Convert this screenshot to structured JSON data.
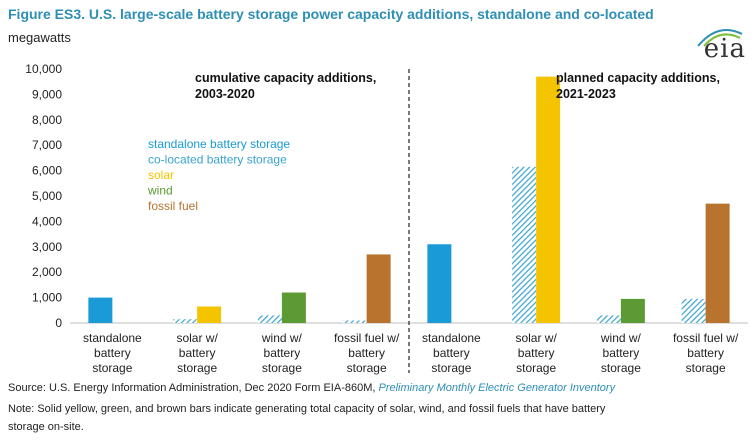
{
  "title": "Figure ES3. U.S. large-scale battery storage power capacity additions, standalone and co-located",
  "unit_label": "megawatts",
  "logo_text": "eia",
  "footer": {
    "source_prefix": "Source: U.S. Energy Information Administration, Dec 2020 Form EIA-860M, ",
    "source_link": "Preliminary Monthly Electric Generator Inventory",
    "note_line1": "Note: Solid yellow, green, and brown bars indicate generating total capacity of solar, wind, and fossil fuels that have battery",
    "note_line2": "storage on-site."
  },
  "colors": {
    "standalone": "#1a9ad6",
    "colocated": "#3aa3cf",
    "solar": "#f5c400",
    "wind": "#5c9a33",
    "fossil": "#b8732f",
    "title": "#2e8fb4"
  },
  "chart_data": {
    "type": "bar",
    "ylim": [
      0,
      10000
    ],
    "yticks": [
      0,
      1000,
      2000,
      3000,
      4000,
      5000,
      6000,
      7000,
      8000,
      9000,
      10000
    ],
    "ytick_labels": [
      "0",
      "1,000",
      "2,000",
      "3,000",
      "4,000",
      "5,000",
      "6,000",
      "7,000",
      "8,000",
      "9,000",
      "10,000"
    ],
    "grid": false,
    "categories": [
      [
        "standalone",
        "battery",
        "storage"
      ],
      [
        "solar w/",
        "battery",
        "storage"
      ],
      [
        "wind w/",
        "battery",
        "storage"
      ],
      [
        "fossil fuel w/",
        "battery",
        "storage"
      ],
      [
        "standalone",
        "battery",
        "storage"
      ],
      [
        "solar w/",
        "battery",
        "storage"
      ],
      [
        "wind w/",
        "battery",
        "storage"
      ],
      [
        "fossil fuel w/",
        "battery",
        "storage"
      ]
    ],
    "bars": [
      [
        {
          "series": "standalone",
          "value": 1000
        }
      ],
      [
        {
          "series": "colocated",
          "value": 150
        },
        {
          "series": "solar",
          "value": 650
        }
      ],
      [
        {
          "series": "colocated",
          "value": 300
        },
        {
          "series": "wind",
          "value": 1200
        }
      ],
      [
        {
          "series": "colocated",
          "value": 100
        },
        {
          "series": "fossil",
          "value": 2700
        }
      ],
      [
        {
          "series": "standalone",
          "value": 3100
        }
      ],
      [
        {
          "series": "colocated",
          "value": 6150
        },
        {
          "series": "solar",
          "value": 9700
        }
      ],
      [
        {
          "series": "colocated",
          "value": 300
        },
        {
          "series": "wind",
          "value": 950
        }
      ],
      [
        {
          "series": "colocated",
          "value": 950
        },
        {
          "series": "fossil",
          "value": 4700
        }
      ]
    ],
    "legend": [
      {
        "key": "standalone",
        "name": "standalone battery storage"
      },
      {
        "key": "colocated",
        "name": "co-located battery storage"
      },
      {
        "key": "solar",
        "name": "solar"
      },
      {
        "key": "wind",
        "name": "wind"
      },
      {
        "key": "fossil",
        "name": "fossil fuel"
      }
    ],
    "annotations": {
      "left": [
        "cumulative capacity additions,",
        "2003-2020"
      ],
      "right": [
        "planned capacity additions,",
        "2021-2023"
      ]
    }
  }
}
